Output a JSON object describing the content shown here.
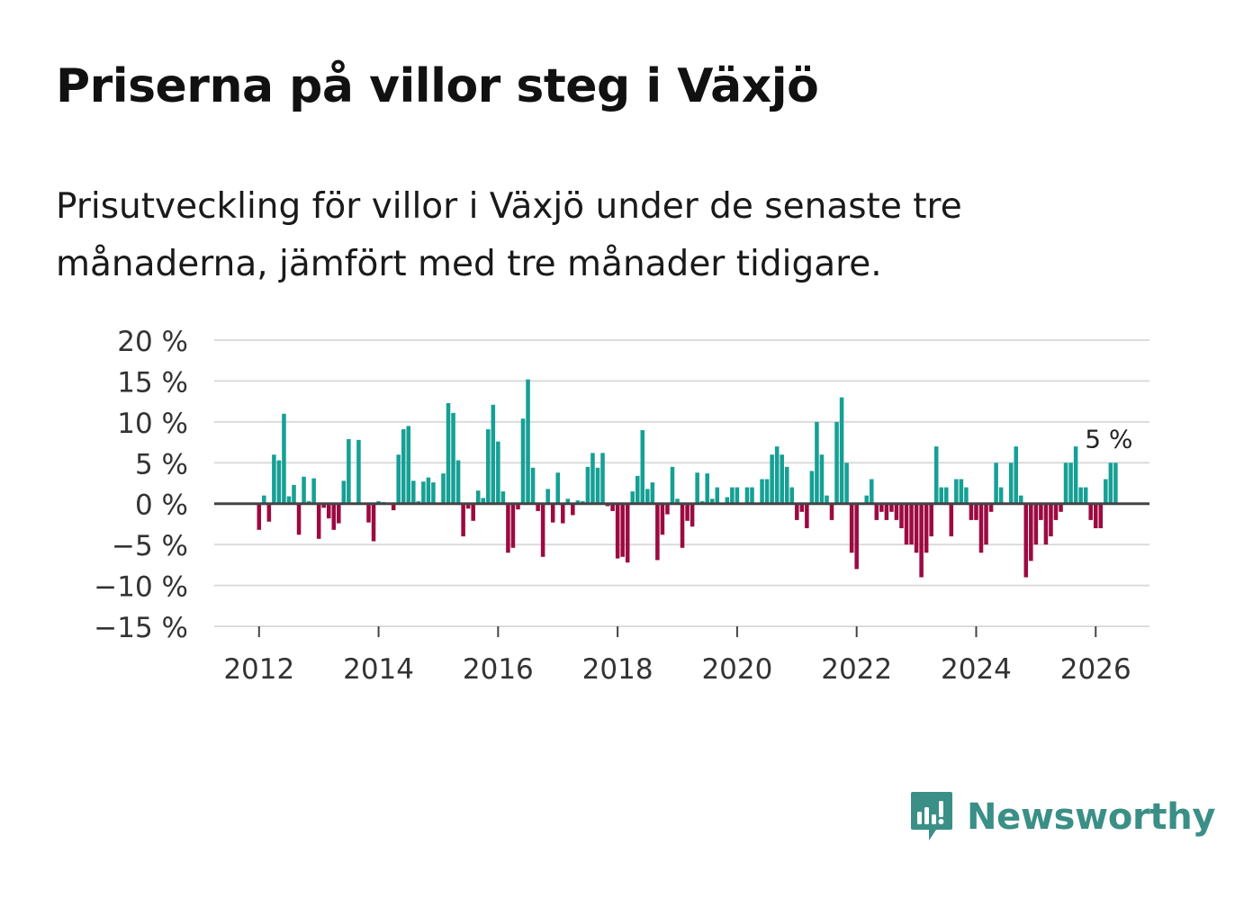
{
  "title": "Priserna på villor steg i Växjö",
  "subtitle": "Prisutveckling för villor i Växjö under de senaste tre månaderna, jämfört med tre månader tidigare.",
  "brand": {
    "name": "Newsworthy",
    "icon": "newsworthy-logo-icon",
    "color": "#3a8f86"
  },
  "chart_data": {
    "type": "bar",
    "title": "Priserna på villor steg i Växjö",
    "xlabel": "",
    "ylabel": "",
    "ylim": [
      -15,
      20
    ],
    "yticks": [
      20,
      15,
      10,
      5,
      0,
      -5,
      -10,
      -15
    ],
    "ytick_labels": [
      "20 %",
      "15 %",
      "10 %",
      "5 %",
      "0 %",
      "−5 %",
      "−10 %",
      "−15 %"
    ],
    "xlim": [
      2011.25,
      2026.9
    ],
    "xticks": [
      2012,
      2014,
      2016,
      2018,
      2020,
      2022,
      2024,
      2026
    ],
    "xtick_labels": [
      "2012",
      "2014",
      "2016",
      "2018",
      "2020",
      "2022",
      "2024",
      "2026"
    ],
    "colors": {
      "positive": "#16a095",
      "negative": "#9c0a41",
      "grid": "#dcdcdc",
      "zero": "#444444"
    },
    "annotation": {
      "text": "5 %",
      "x": 2026.1,
      "y": 5
    },
    "series": [
      {
        "name": "Prisutveckling",
        "start": {
          "year": 2012,
          "month": 1
        },
        "values": [
          -3.2,
          1,
          -2.2,
          6,
          5.3,
          11,
          0.9,
          2.3,
          -3.8,
          3.3,
          0.3,
          3.1,
          -4.3,
          -0.5,
          -1.8,
          -3.2,
          -2.4,
          2.8,
          7.9,
          0,
          7.8,
          0,
          -2.3,
          -4.6,
          0.3,
          0.2,
          0,
          -0.8,
          6,
          9.1,
          9.5,
          2.8,
          0.3,
          2.7,
          3.2,
          2.6,
          0,
          3.7,
          12.3,
          11.1,
          5.3,
          -4,
          -0.6,
          -2.1,
          1.6,
          0.7,
          9.1,
          12.1,
          7.6,
          1.5,
          -6,
          -5.4,
          -0.7,
          10.4,
          15.2,
          4.4,
          -0.9,
          -6.5,
          1.8,
          -2.3,
          3.8,
          -2.4,
          0.6,
          -1.4,
          0.4,
          0.3,
          4.5,
          6.2,
          4.4,
          6.2,
          -0.3,
          -0.9,
          -6.7,
          -6.5,
          -7.2,
          1.5,
          3.4,
          9,
          1.8,
          2.6,
          -6.9,
          -3.8,
          -1.3,
          4.5,
          0.6,
          -5.4,
          -2.1,
          -2.8,
          3.8,
          0.3,
          3.7,
          0.6,
          2,
          0,
          0.8,
          2,
          2,
          0,
          2,
          2,
          0,
          3,
          3,
          6,
          7,
          6,
          4.5,
          2,
          -2,
          -1,
          -3,
          4,
          10,
          6,
          1,
          -2,
          10,
          13,
          5,
          -6,
          -8,
          0,
          1,
          3,
          -2,
          -1,
          -2,
          -1,
          -2,
          -3,
          -5,
          -5,
          -6,
          -9,
          -6,
          -4,
          7,
          2,
          2,
          -4,
          3,
          3,
          2,
          -2,
          -2,
          -6,
          -5,
          -1,
          5,
          2,
          0,
          5,
          7,
          1,
          -9,
          -7,
          -5,
          -2,
          -5,
          -4,
          -2,
          -1,
          5,
          5,
          7,
          2,
          2,
          -2,
          -3,
          -3,
          3,
          5,
          5
        ]
      }
    ]
  }
}
